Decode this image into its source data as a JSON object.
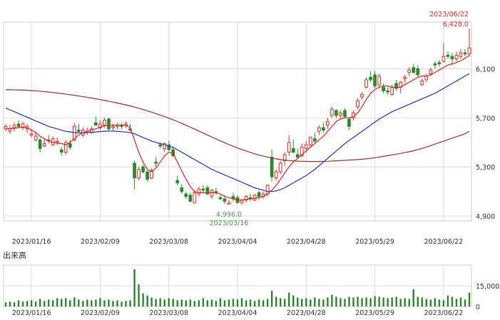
{
  "colors": {
    "up": "#e0302b",
    "down": "#2f8a2f",
    "ma_short": "#e8201a",
    "ma_mid": "#2233dd",
    "ma_long": "#a03030",
    "grid": "#dddddd",
    "frame": "#cccccc",
    "high_label": "#e0302b",
    "low_label": "#4f9a4f",
    "volume": "#2f8a2f"
  },
  "chart_data": [
    {
      "type": "candlestick",
      "title": "",
      "x_tick_labels": [
        "2023/01/16",
        "2023/02/09",
        "2023/03/08",
        "2023/04/04",
        "2023/04/28",
        "2023/05/29",
        "2023/06/22"
      ],
      "x_tick_positions": [
        6,
        22,
        38,
        54,
        70,
        86,
        102
      ],
      "y_tick_labels": [
        "6,100",
        "5,700",
        "5,300",
        "4,900"
      ],
      "y_tick_values": [
        6100,
        5700,
        5300,
        4900
      ],
      "ylim": [
        4860,
        6480
      ],
      "grid": true,
      "x_count": 109,
      "ohlc": [
        [
          5610,
          5650,
          5590,
          5630
        ],
        [
          5590,
          5640,
          5570,
          5610
        ],
        [
          5620,
          5660,
          5590,
          5640
        ],
        [
          5650,
          5680,
          5620,
          5630
        ],
        [
          5620,
          5670,
          5600,
          5650
        ],
        [
          5610,
          5650,
          5580,
          5630
        ],
        [
          5560,
          5610,
          5540,
          5570
        ],
        [
          5520,
          5590,
          5510,
          5550
        ],
        [
          5520,
          5540,
          5420,
          5450
        ],
        [
          5470,
          5530,
          5460,
          5490
        ],
        [
          5520,
          5560,
          5490,
          5520
        ],
        [
          5480,
          5550,
          5470,
          5530
        ],
        [
          5500,
          5540,
          5480,
          5510
        ],
        [
          5440,
          5460,
          5390,
          5420
        ],
        [
          5420,
          5520,
          5400,
          5500
        ],
        [
          5490,
          5520,
          5440,
          5460
        ],
        [
          5520,
          5660,
          5510,
          5630
        ],
        [
          5600,
          5650,
          5580,
          5590
        ],
        [
          5560,
          5620,
          5540,
          5600
        ],
        [
          5580,
          5620,
          5560,
          5590
        ],
        [
          5580,
          5630,
          5570,
          5610
        ],
        [
          5660,
          5710,
          5640,
          5640
        ],
        [
          5620,
          5680,
          5600,
          5650
        ],
        [
          5640,
          5700,
          5620,
          5680
        ],
        [
          5690,
          5700,
          5590,
          5610
        ],
        [
          5620,
          5650,
          5590,
          5630
        ],
        [
          5630,
          5660,
          5610,
          5640
        ],
        [
          5640,
          5660,
          5610,
          5630
        ],
        [
          5640,
          5670,
          5620,
          5650
        ],
        [
          5610,
          5650,
          5590,
          5600
        ],
        [
          5330,
          5350,
          5120,
          5210
        ],
        [
          5210,
          5300,
          5190,
          5280
        ],
        [
          5300,
          5320,
          5250,
          5260
        ],
        [
          5260,
          5270,
          5180,
          5200
        ],
        [
          5210,
          5290,
          5200,
          5270
        ],
        [
          5340,
          5380,
          5300,
          5330
        ],
        [
          5480,
          5500,
          5450,
          5470
        ],
        [
          5450,
          5500,
          5420,
          5490
        ],
        [
          5480,
          5510,
          5430,
          5440
        ],
        [
          5440,
          5460,
          5380,
          5390
        ],
        [
          5190,
          5230,
          5150,
          5170
        ],
        [
          5130,
          5160,
          5080,
          5100
        ],
        [
          5080,
          5100,
          5040,
          5060
        ],
        [
          5070,
          5090,
          5010,
          5020
        ],
        [
          5010,
          5110,
          5000,
          5090
        ],
        [
          5080,
          5140,
          5060,
          5120
        ],
        [
          5120,
          5150,
          5090,
          5110
        ],
        [
          5130,
          5150,
          5070,
          5080
        ],
        [
          5060,
          5120,
          5040,
          5110
        ],
        [
          5100,
          5130,
          5070,
          5090
        ],
        [
          5050,
          5070,
          5030,
          5040
        ],
        [
          5040,
          5070,
          5000,
          5020
        ],
        [
          4996,
          5030,
          4996,
          5010
        ],
        [
          5060,
          5090,
          5020,
          5040
        ],
        [
          5050,
          5070,
          5000,
          5010
        ],
        [
          5010,
          5040,
          4990,
          5030
        ],
        [
          5030,
          5070,
          5010,
          5060
        ],
        [
          5050,
          5080,
          5020,
          5040
        ],
        [
          5030,
          5080,
          5020,
          5070
        ],
        [
          5090,
          5110,
          5030,
          5060
        ],
        [
          5060,
          5100,
          5040,
          5080
        ],
        [
          5080,
          5160,
          5060,
          5150
        ],
        [
          5380,
          5440,
          5180,
          5220
        ],
        [
          5210,
          5280,
          5190,
          5260
        ],
        [
          5260,
          5350,
          5240,
          5330
        ],
        [
          5350,
          5420,
          5310,
          5400
        ],
        [
          5420,
          5560,
          5390,
          5500
        ],
        [
          5450,
          5520,
          5410,
          5420
        ],
        [
          5400,
          5450,
          5370,
          5380
        ],
        [
          5390,
          5490,
          5380,
          5460
        ],
        [
          5450,
          5510,
          5420,
          5480
        ],
        [
          5480,
          5550,
          5460,
          5540
        ],
        [
          5530,
          5580,
          5500,
          5510
        ],
        [
          5590,
          5640,
          5560,
          5620
        ],
        [
          5620,
          5660,
          5580,
          5600
        ],
        [
          5640,
          5700,
          5610,
          5670
        ],
        [
          5720,
          5790,
          5700,
          5770
        ],
        [
          5760,
          5770,
          5700,
          5720
        ],
        [
          5720,
          5760,
          5690,
          5740
        ],
        [
          5760,
          5780,
          5700,
          5710
        ],
        [
          5690,
          5700,
          5600,
          5630
        ],
        [
          5700,
          5760,
          5680,
          5740
        ],
        [
          5790,
          5860,
          5770,
          5840
        ],
        [
          5870,
          5910,
          5850,
          5890
        ],
        [
          5950,
          6030,
          5940,
          6010
        ],
        [
          6030,
          6080,
          5990,
          6010
        ],
        [
          6050,
          6080,
          5940,
          5960
        ],
        [
          5970,
          6060,
          5950,
          6040
        ],
        [
          5950,
          5980,
          5900,
          5920
        ],
        [
          5920,
          5950,
          5890,
          5910
        ],
        [
          5890,
          5970,
          5880,
          5950
        ],
        [
          5980,
          6010,
          5920,
          5940
        ],
        [
          5950,
          6000,
          5900,
          5990
        ],
        [
          6020,
          6050,
          5980,
          6030
        ],
        [
          6070,
          6110,
          6040,
          6090
        ],
        [
          6110,
          6140,
          6060,
          6070
        ],
        [
          6100,
          6130,
          6030,
          6050
        ],
        [
          5970,
          6020,
          5960,
          6000
        ],
        [
          6010,
          6060,
          5990,
          6040
        ],
        [
          6060,
          6110,
          6040,
          6090
        ],
        [
          6140,
          6160,
          6100,
          6130
        ],
        [
          6150,
          6170,
          6120,
          6140
        ],
        [
          6160,
          6310,
          6150,
          6200
        ],
        [
          6210,
          6240,
          6180,
          6200
        ],
        [
          6200,
          6230,
          6130,
          6180
        ],
        [
          6180,
          6240,
          6160,
          6210
        ],
        [
          6200,
          6260,
          6180,
          6230
        ],
        [
          6230,
          6260,
          6200,
          6220
        ],
        [
          6220,
          6428,
          6200,
          6270
        ]
      ],
      "ma_short": [
        5610,
        5612,
        5615,
        5620,
        5625,
        5620,
        5600,
        5580,
        5550,
        5530,
        5510,
        5500,
        5495,
        5490,
        5480,
        5500,
        5530,
        5560,
        5580,
        5590,
        5600,
        5610,
        5625,
        5635,
        5640,
        5640,
        5640,
        5640,
        5640,
        5620,
        5520,
        5420,
        5340,
        5280,
        5260,
        5290,
        5340,
        5390,
        5420,
        5410,
        5340,
        5270,
        5200,
        5140,
        5100,
        5090,
        5090,
        5090,
        5090,
        5090,
        5080,
        5060,
        5050,
        5040,
        5030,
        5030,
        5035,
        5040,
        5045,
        5050,
        5060,
        5080,
        5110,
        5150,
        5200,
        5250,
        5300,
        5340,
        5370,
        5400,
        5430,
        5460,
        5490,
        5520,
        5550,
        5590,
        5630,
        5670,
        5690,
        5700,
        5700,
        5710,
        5740,
        5790,
        5850,
        5900,
        5930,
        5950,
        5960,
        5960,
        5950,
        5945,
        5950,
        5970,
        5990,
        6010,
        6030,
        6040,
        6040,
        6050,
        6070,
        6090,
        6110,
        6130,
        6140,
        6150,
        6165,
        6185,
        6210
      ],
      "ma_mid": [
        5780,
        5765,
        5750,
        5735,
        5720,
        5705,
        5690,
        5675,
        5660,
        5645,
        5630,
        5620,
        5610,
        5600,
        5590,
        5585,
        5580,
        5578,
        5578,
        5580,
        5582,
        5585,
        5588,
        5590,
        5592,
        5592,
        5590,
        5587,
        5584,
        5580,
        5570,
        5555,
        5540,
        5525,
        5510,
        5500,
        5490,
        5480,
        5470,
        5460,
        5440,
        5420,
        5400,
        5380,
        5360,
        5340,
        5320,
        5300,
        5280,
        5265,
        5250,
        5235,
        5220,
        5205,
        5190,
        5175,
        5160,
        5145,
        5130,
        5120,
        5110,
        5100,
        5100,
        5105,
        5115,
        5130,
        5150,
        5170,
        5190,
        5210,
        5230,
        5255,
        5280,
        5310,
        5340,
        5370,
        5400,
        5430,
        5460,
        5490,
        5515,
        5540,
        5565,
        5590,
        5615,
        5640,
        5665,
        5690,
        5710,
        5730,
        5750,
        5765,
        5780,
        5795,
        5810,
        5825,
        5840,
        5855,
        5870,
        5885,
        5900,
        5920,
        5940,
        5960,
        5980,
        6000,
        6020,
        6040,
        6060
      ],
      "ma_long": [
        5930,
        5929,
        5928,
        5927,
        5926,
        5924,
        5922,
        5920,
        5917,
        5914,
        5910,
        5906,
        5902,
        5898,
        5893,
        5888,
        5883,
        5878,
        5873,
        5867,
        5861,
        5855,
        5849,
        5842,
        5835,
        5828,
        5821,
        5813,
        5805,
        5797,
        5788,
        5778,
        5768,
        5757,
        5746,
        5734,
        5722,
        5710,
        5697,
        5684,
        5670,
        5655,
        5640,
        5624,
        5608,
        5592,
        5576,
        5560,
        5544,
        5528,
        5512,
        5497,
        5482,
        5468,
        5455,
        5442,
        5430,
        5418,
        5407,
        5397,
        5388,
        5380,
        5372,
        5366,
        5360,
        5356,
        5352,
        5349,
        5347,
        5346,
        5345,
        5344,
        5344,
        5344,
        5345,
        5346,
        5348,
        5350,
        5352,
        5354,
        5356,
        5358,
        5360,
        5363,
        5366,
        5370,
        5375,
        5380,
        5386,
        5392,
        5398,
        5404,
        5410,
        5417,
        5424,
        5432,
        5441,
        5451,
        5462,
        5474,
        5486,
        5498,
        5510,
        5522,
        5534,
        5546,
        5558,
        5570,
        5590
      ],
      "annotations": {
        "high": {
          "date": "2023/06/22",
          "value": "6,428.0",
          "index": 108
        },
        "low": {
          "date": "2023/03/16",
          "value": "4,996.0",
          "index": 52
        }
      }
    },
    {
      "type": "bar",
      "title": "出来高",
      "x_tick_labels": [
        "2023/01/16",
        "2023/02/09",
        "2023/03/08",
        "2023/04/04",
        "2023/04/28",
        "2023/05/29",
        "2023/06/22"
      ],
      "x_tick_positions": [
        6,
        22,
        38,
        54,
        70,
        86,
        102
      ],
      "y_tick_labels": [
        "15,000",
        "0"
      ],
      "y_tick_values": [
        15000,
        0
      ],
      "ylim": [
        0,
        30000
      ],
      "values": [
        3000,
        3500,
        3000,
        4500,
        3500,
        4000,
        4500,
        3500,
        5500,
        4000,
        5000,
        4500,
        6000,
        5500,
        6000,
        4500,
        6500,
        5000,
        4000,
        5000,
        4500,
        5000,
        6000,
        4500,
        5000,
        4000,
        4500,
        3500,
        4000,
        4500,
        27000,
        16000,
        9500,
        8000,
        6500,
        5500,
        6000,
        5000,
        6000,
        5500,
        4500,
        5000,
        4500,
        5000,
        4000,
        4500,
        6000,
        4500,
        5000,
        4000,
        6000,
        4500,
        5000,
        5500,
        5000,
        6000,
        4500,
        5000,
        4000,
        5000,
        4500,
        5500,
        11500,
        7000,
        6000,
        5500,
        10000,
        8000,
        6500,
        5500,
        6000,
        5000,
        6500,
        5500,
        5000,
        6500,
        8500,
        7000,
        6000,
        5500,
        7000,
        6500,
        7000,
        6000,
        6500,
        6000,
        7500,
        7000,
        6500,
        6000,
        6500,
        7000,
        5500,
        6000,
        5500,
        12500,
        7000,
        6500,
        5500,
        5000,
        6000,
        5000,
        4500,
        8000,
        7000,
        5500,
        6500,
        5000,
        10000
      ]
    }
  ],
  "vol_title": "出来高"
}
